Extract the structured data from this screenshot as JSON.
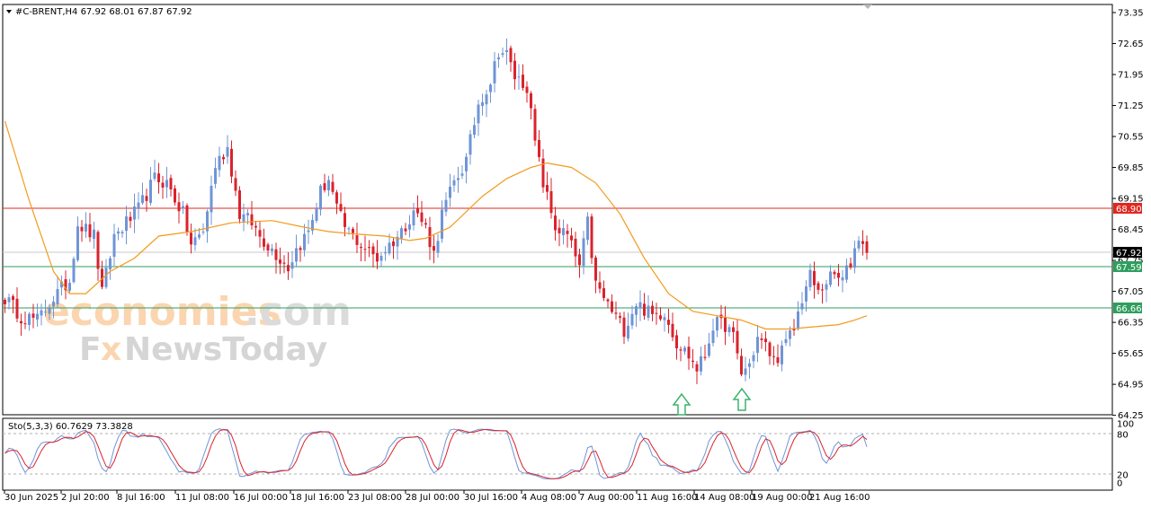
{
  "header": {
    "symbol_line": "#C-BRENT,H4  67.92 68.01 67.87 67.92"
  },
  "osc_header": "Sto(5,3,3) 60.7629 73.3828",
  "watermark": {
    "line1": "economies",
    "line1b": ".com",
    "line2a": "F",
    "line2b": "x",
    "line2c": "NewsToday"
  },
  "price_axis_labels": [
    "73.35",
    "72.65",
    "71.95",
    "71.25",
    "70.55",
    "69.85",
    "69.15",
    "68.45",
    "67.75",
    "67.05",
    "66.35",
    "65.65",
    "64.95",
    "64.25"
  ],
  "osc_axis_labels": [
    "100",
    "80",
    "20",
    "0"
  ],
  "time_labels": [
    "30 Jun 2025",
    "2 Jul 20:00",
    "8 Jul 16:00",
    "11 Jul 08:00",
    "16 Jul 00:00",
    "18 Jul 16:00",
    "23 Jul 08:00",
    "28 Jul 00:00",
    "30 Jul 16:00",
    "4 Aug 08:00",
    "7 Aug 00:00",
    "11 Aug 16:00",
    "14 Aug 08:00",
    "19 Aug 00:00",
    "21 Aug 16:00"
  ],
  "tags": {
    "resistance": "68.90",
    "current": "67.92",
    "support1": "67.59",
    "support2": "66.66"
  },
  "colors": {
    "bull": "#6f95d6",
    "bear": "#d9232d",
    "ma": "#f39a1c",
    "resistance": "#e0281f",
    "support": "#2e9e5e",
    "current": "#c0c0c0",
    "stoch_main": "#6f95d6",
    "stoch_signal": "#d9232d",
    "arrow": "#3cb46e"
  },
  "chart_data": {
    "type": "candlestick",
    "symbol": "#C-BRENT",
    "timeframe": "H4",
    "ylim": [
      64.2,
      73.5
    ],
    "horizontal_levels": [
      68.9,
      67.92,
      67.59,
      66.66
    ],
    "anchors": [
      [
        0,
        66.9
      ],
      [
        4,
        66.5
      ],
      [
        8,
        66.4
      ],
      [
        12,
        66.9
      ],
      [
        16,
        67.3
      ],
      [
        18,
        68.6
      ],
      [
        22,
        68.3
      ],
      [
        24,
        67.0
      ],
      [
        27,
        68.3
      ],
      [
        33,
        68.9
      ],
      [
        37,
        69.6
      ],
      [
        40,
        69.5
      ],
      [
        44,
        68.8
      ],
      [
        46,
        68.1
      ],
      [
        49,
        68.4
      ],
      [
        52,
        69.9
      ],
      [
        55,
        70.3
      ],
      [
        58,
        68.8
      ],
      [
        61,
        68.6
      ],
      [
        63,
        68.3
      ],
      [
        67,
        67.9
      ],
      [
        70,
        67.6
      ],
      [
        72,
        68.0
      ],
      [
        75,
        68.4
      ],
      [
        78,
        69.3
      ],
      [
        80,
        69.6
      ],
      [
        82,
        68.9
      ],
      [
        84,
        68.5
      ],
      [
        88,
        68.1
      ],
      [
        92,
        67.8
      ],
      [
        95,
        68.1
      ],
      [
        98,
        68.4
      ],
      [
        101,
        68.9
      ],
      [
        104,
        68.5
      ],
      [
        106,
        67.9
      ],
      [
        108,
        68.8
      ],
      [
        111,
        69.5
      ],
      [
        114,
        70.0
      ],
      [
        117,
        71.3
      ],
      [
        120,
        71.8
      ],
      [
        122,
        72.5
      ],
      [
        124,
        72.4
      ],
      [
        126,
        71.9
      ],
      [
        129,
        71.7
      ],
      [
        131,
        70.4
      ],
      [
        133,
        69.5
      ],
      [
        136,
        68.5
      ],
      [
        139,
        68.3
      ],
      [
        142,
        67.6
      ],
      [
        144,
        68.6
      ],
      [
        146,
        67.2
      ],
      [
        148,
        66.9
      ],
      [
        150,
        66.6
      ],
      [
        153,
        66.2
      ],
      [
        156,
        66.8
      ],
      [
        160,
        66.5
      ],
      [
        163,
        66.6
      ],
      [
        166,
        65.9
      ],
      [
        169,
        65.6
      ],
      [
        171,
        65.3
      ],
      [
        173,
        65.6
      ],
      [
        175,
        66.3
      ],
      [
        178,
        66.3
      ],
      [
        180,
        66.0
      ],
      [
        182,
        65.2
      ],
      [
        184,
        65.4
      ],
      [
        186,
        66.0
      ],
      [
        188,
        65.8
      ],
      [
        190,
        65.5
      ],
      [
        192,
        65.7
      ],
      [
        195,
        66.2
      ],
      [
        197,
        66.9
      ],
      [
        199,
        67.4
      ],
      [
        201,
        67.0
      ],
      [
        203,
        67.3
      ],
      [
        205,
        67.4
      ],
      [
        207,
        67.3
      ],
      [
        209,
        67.7
      ],
      [
        211,
        68.3
      ],
      [
        212,
        68.2
      ],
      [
        213,
        67.9
      ]
    ],
    "ma_curve": [
      [
        0,
        70.9
      ],
      [
        6,
        69.1
      ],
      [
        12,
        67.5
      ],
      [
        16,
        67.0
      ],
      [
        20,
        67.0
      ],
      [
        26,
        67.5
      ],
      [
        32,
        67.8
      ],
      [
        38,
        68.3
      ],
      [
        46,
        68.4
      ],
      [
        56,
        68.6
      ],
      [
        66,
        68.65
      ],
      [
        74,
        68.5
      ],
      [
        80,
        68.4
      ],
      [
        86,
        68.35
      ],
      [
        94,
        68.3
      ],
      [
        100,
        68.2
      ],
      [
        104,
        68.25
      ],
      [
        110,
        68.5
      ],
      [
        118,
        69.2
      ],
      [
        124,
        69.6
      ],
      [
        130,
        69.85
      ],
      [
        134,
        69.95
      ],
      [
        140,
        69.85
      ],
      [
        146,
        69.5
      ],
      [
        152,
        68.8
      ],
      [
        158,
        67.8
      ],
      [
        164,
        67.0
      ],
      [
        170,
        66.6
      ],
      [
        176,
        66.5
      ],
      [
        182,
        66.4
      ],
      [
        188,
        66.2
      ],
      [
        194,
        66.2
      ],
      [
        200,
        66.25
      ],
      [
        206,
        66.3
      ],
      [
        210,
        66.4
      ],
      [
        213,
        66.5
      ]
    ],
    "bars": 214,
    "stochastic": {
      "params": "5,3,3",
      "main": 60.7629,
      "signal": 73.3828,
      "levels": [
        80,
        20
      ],
      "ylim": [
        0,
        100
      ]
    },
    "annotations": [
      {
        "type": "up-arrow",
        "bar": 168,
        "price": 64.55
      },
      {
        "type": "up-arrow",
        "bar": 182,
        "price": 64.55
      }
    ]
  }
}
